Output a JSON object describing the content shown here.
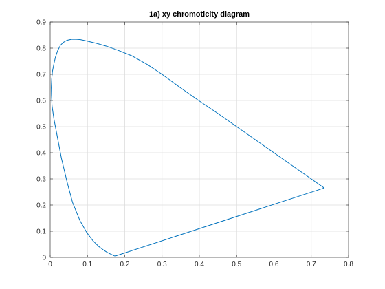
{
  "chart_data": {
    "type": "line",
    "title": "1a) xy chromoticity diagram",
    "xlabel": "",
    "ylabel": "",
    "xlim": [
      0,
      0.8
    ],
    "ylim": [
      0,
      0.9
    ],
    "x_ticks": [
      "0",
      "0.1",
      "0.2",
      "0.3",
      "0.4",
      "0.5",
      "0.6",
      "0.7",
      "0.8"
    ],
    "y_ticks": [
      "0",
      "0.1",
      "0.2",
      "0.3",
      "0.4",
      "0.5",
      "0.6",
      "0.7",
      "0.8",
      "0.9"
    ],
    "grid": true,
    "series": [
      {
        "color": "#0072bd",
        "x": [
          0.1741,
          0.173,
          0.17,
          0.166,
          0.16,
          0.152,
          0.143,
          0.13,
          0.115,
          0.098,
          0.08,
          0.06,
          0.045,
          0.03,
          0.018,
          0.01,
          0.005,
          0.0035,
          0.003,
          0.004,
          0.006,
          0.01,
          0.014,
          0.02,
          0.027,
          0.035,
          0.045,
          0.057,
          0.07,
          0.08,
          0.09,
          0.105,
          0.125,
          0.15,
          0.18,
          0.22,
          0.26,
          0.3,
          0.35,
          0.4,
          0.45,
          0.5,
          0.55,
          0.6,
          0.65,
          0.7,
          0.7347,
          0.1741
        ],
        "y": [
          0.005,
          0.0055,
          0.007,
          0.01,
          0.014,
          0.02,
          0.028,
          0.042,
          0.063,
          0.095,
          0.14,
          0.21,
          0.29,
          0.38,
          0.47,
          0.53,
          0.58,
          0.62,
          0.65,
          0.68,
          0.71,
          0.74,
          0.765,
          0.79,
          0.81,
          0.822,
          0.83,
          0.834,
          0.834,
          0.833,
          0.83,
          0.825,
          0.818,
          0.808,
          0.793,
          0.77,
          0.738,
          0.7,
          0.648,
          0.598,
          0.55,
          0.5,
          0.45,
          0.4,
          0.35,
          0.3,
          0.2653,
          0.005
        ]
      }
    ]
  }
}
